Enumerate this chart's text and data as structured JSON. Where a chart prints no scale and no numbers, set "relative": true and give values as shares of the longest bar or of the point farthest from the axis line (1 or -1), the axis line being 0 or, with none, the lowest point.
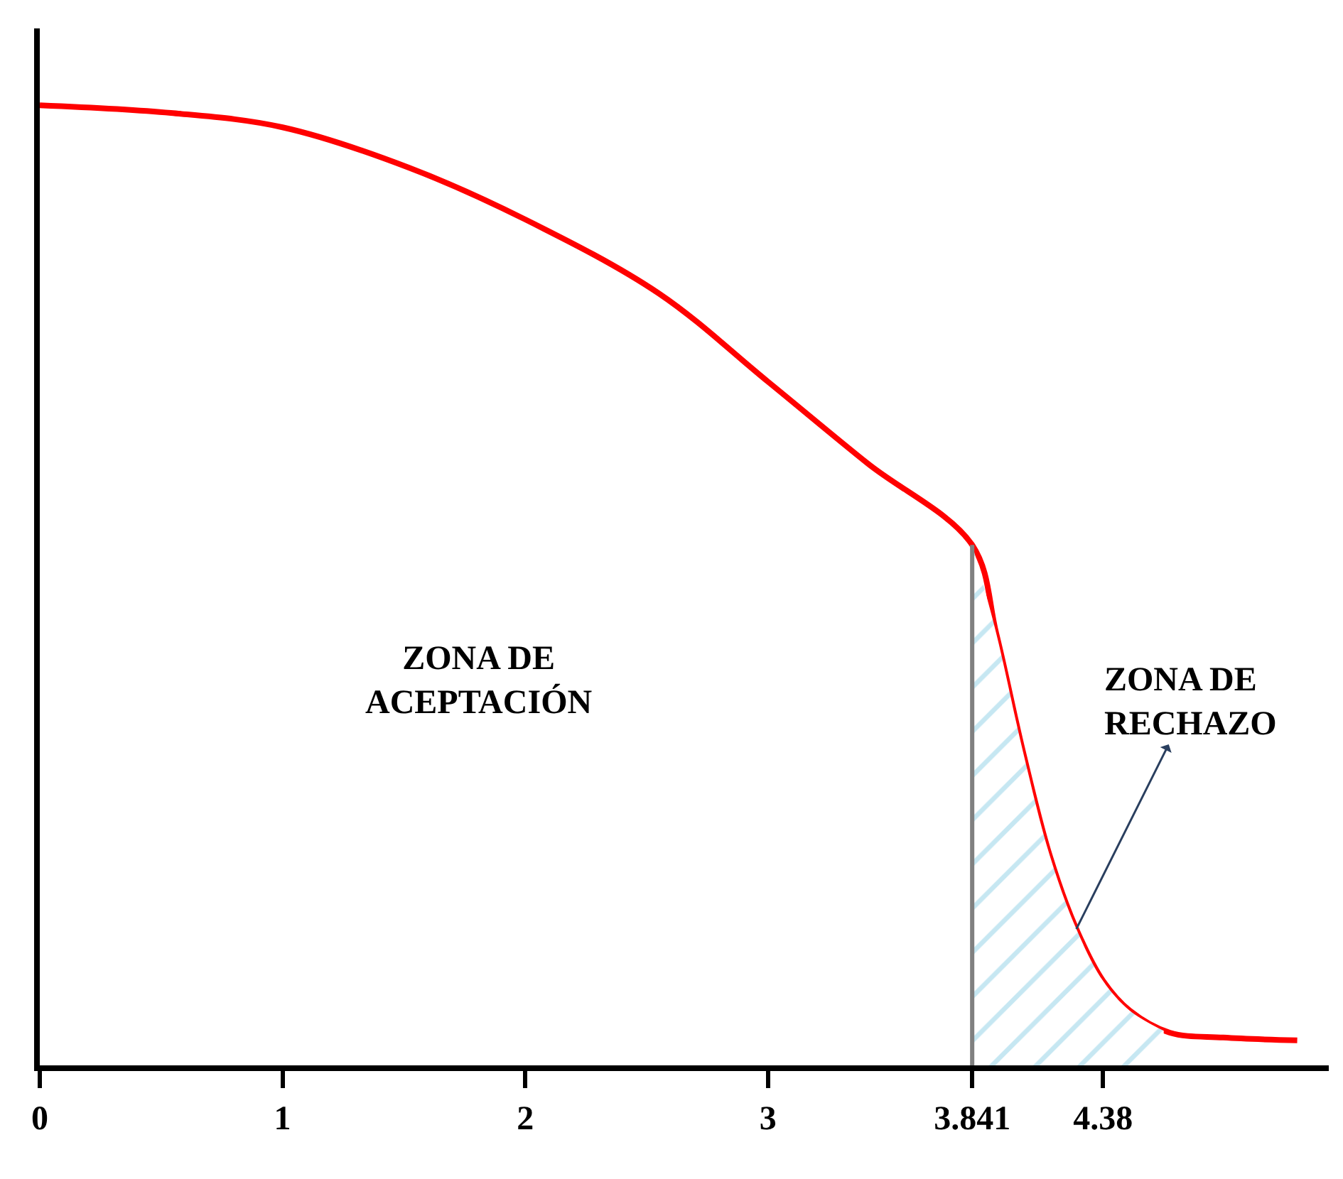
{
  "chart_data": {
    "type": "line",
    "relative": true,
    "x": [
      0,
      0.54,
      1,
      1.52,
      2,
      2.55,
      3,
      3.41,
      3.841,
      3.94,
      4.05,
      4.16,
      4.27,
      4.38,
      4.49,
      4.655,
      4.875,
      5.18
    ],
    "series": [
      {
        "color": "#ff0000",
        "values": [
          1.0,
          0.992,
          0.977,
          0.935,
          0.881,
          0.804,
          0.712,
          0.627,
          0.542,
          0.45,
          0.327,
          0.219,
          0.142,
          0.088,
          0.057,
          0.034,
          0.029,
          0.026
        ]
      },
      {
        "type": "area",
        "color": "#8ed0e6",
        "x": [
          3.841,
          3.94,
          4.05,
          4.16,
          4.27,
          4.38,
          4.49,
          4.63
        ],
        "values": [
          0.542,
          0.45,
          0.327,
          0.219,
          0.142,
          0.088,
          0.057,
          0.036
        ]
      }
    ],
    "xlim": [
      0,
      5.31
    ],
    "xticks": [
      0,
      1,
      2,
      3,
      3.841,
      4.38
    ],
    "ref_lines": [
      {
        "axis": "x",
        "value": 3.841,
        "color": "#808080"
      }
    ],
    "annotations": [
      "ZONA DE\nACEPTACIÓN",
      {
        "text": "ZONA DE\nRECHAZO",
        "x": 4.27,
        "y": 0.142
      }
    ]
  }
}
